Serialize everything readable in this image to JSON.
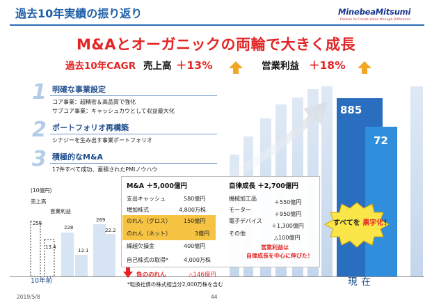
{
  "header": {
    "title": "過去10年実績の振り返り",
    "logo": {
      "name": "MinebeaMitsumi",
      "tagline": "Passion to Create Value through Difference"
    }
  },
  "headline": "M&Aとオーガニックの両輪で大きく成長",
  "cagr": {
    "label": "過去10年CAGR",
    "sales_label": "売上高",
    "sales_value": "＋13%",
    "profit_label": "営業利益",
    "profit_value": "＋18%"
  },
  "points": [
    {
      "num": "1",
      "title": "明確な事業設定",
      "lines": [
        "コア事業：超精密＆高品質で強化",
        "サブコア事業：キャッシュカウとして収益最大化"
      ]
    },
    {
      "num": "2",
      "title": "ポートフォリオ再構築",
      "lines": [
        "シナジーを生み出す事業ポートフォリオ"
      ]
    },
    {
      "num": "3",
      "title": "積極的なM&A",
      "lines": [
        "17件すべて成功、蓄積されたPMIノウハウ"
      ]
    }
  ],
  "left_chart": {
    "unit": "(10億円)",
    "sales_label": "売上高",
    "profit_label": "営業利益",
    "values": [
      "256",
      "13.4",
      "228",
      "12.1",
      "269",
      "22.2"
    ]
  },
  "current": {
    "sales_value": "885",
    "profit_value": "72"
  },
  "details": {
    "ma": {
      "heading": "M&A ＋5,000億円",
      "rows": [
        {
          "label": "支出キャッシュ",
          "value": "580億円"
        },
        {
          "label": "増加株式",
          "value": "4,800万株"
        },
        {
          "label": "のれん（グロス）",
          "value": "150億円"
        },
        {
          "label": "のれん（ネット）",
          "value": "3億円"
        },
        {
          "label": "繰越欠損金",
          "value": "400億円"
        },
        {
          "label": "自己株式の取得*",
          "value": "4,000万株"
        }
      ]
    },
    "organic": {
      "heading": "自律成長 ＋2,700億円",
      "rows": [
        {
          "label": "機械加工品",
          "value": "＋550億円"
        },
        {
          "label": "モーター",
          "value": "＋950億円"
        },
        {
          "label": "電子デバイス",
          "value": "＋1,300億円"
        },
        {
          "label": "その他",
          "value": "△100億円"
        }
      ],
      "note": [
        "営業利益は",
        "自律成長を中心に伸びた！"
      ]
    }
  },
  "burst": {
    "prefix": "すべてを ",
    "emphasis": "黒字化",
    "suffix": "！"
  },
  "bottom": {
    "negative_goodwill": "負ののれん",
    "negative_goodwill_value": "△146億円",
    "footnote": "*転換社債の株式相当分2,000万株を含む",
    "past_label": "10年前",
    "current_label": "現在"
  },
  "footer": {
    "date": "2019/5/8",
    "page": "44"
  }
}
